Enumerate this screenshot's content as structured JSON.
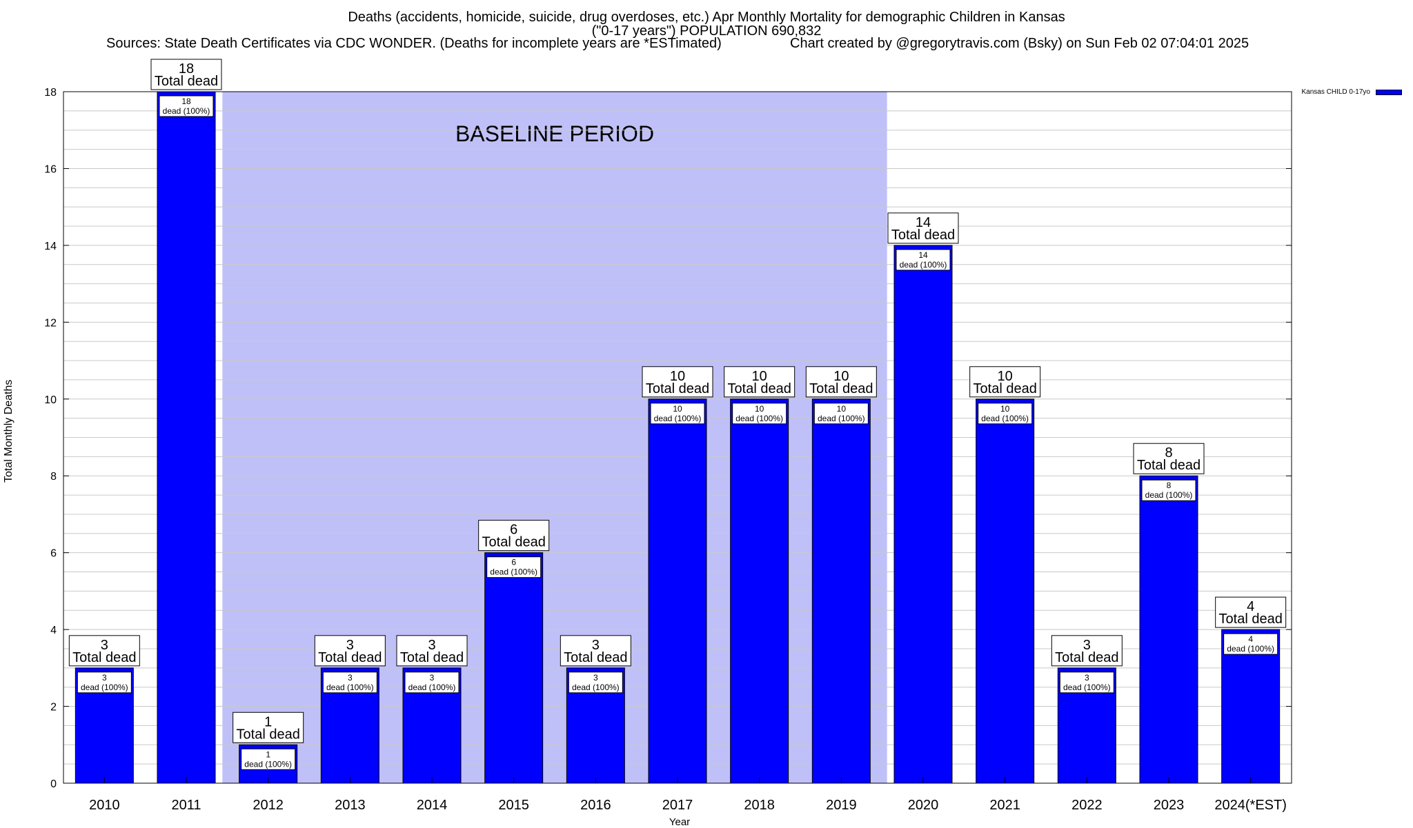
{
  "chart_data": {
    "type": "bar",
    "title_line1": "Deaths (accidents, homicide, suicide, drug overdoses, etc.) Apr Monthly Mortality for demographic Children in Kansas",
    "title_line2": "(\"0-17 years\") POPULATION 690,832",
    "subtitle_sources": "Sources: State Death Certificates via CDC WONDER. (Deaths for incomplete years are *ESTimated)",
    "subtitle_credit": "Chart created by @gregorytravis.com (Bsky) on Sun Feb 02 07:04:01 2025",
    "xlabel": "Year",
    "ylabel": "Total Monthly Deaths",
    "ylim": [
      0,
      18
    ],
    "yticks": [
      0,
      2,
      4,
      6,
      8,
      10,
      12,
      14,
      16,
      18
    ],
    "categories": [
      "2010",
      "2011",
      "2012",
      "2013",
      "2014",
      "2015",
      "2016",
      "2017",
      "2018",
      "2019",
      "2020",
      "2021",
      "2022",
      "2023",
      "2024(*EST)"
    ],
    "series": [
      {
        "name": "Kansas CHILD 0-17yo",
        "values": [
          3,
          18,
          1,
          3,
          3,
          6,
          3,
          10,
          10,
          10,
          14,
          10,
          3,
          8,
          4
        ],
        "color": "#0000ff"
      }
    ],
    "top_label_suffix": "Total dead",
    "inner_label_suffix": "dead (100%)",
    "baseline_region": {
      "label": "BASELINE PERIOD",
      "from_category": "2012",
      "to_category": "2019",
      "color": "#c0c0f8"
    },
    "grid": true,
    "legend_position": "top-right"
  }
}
